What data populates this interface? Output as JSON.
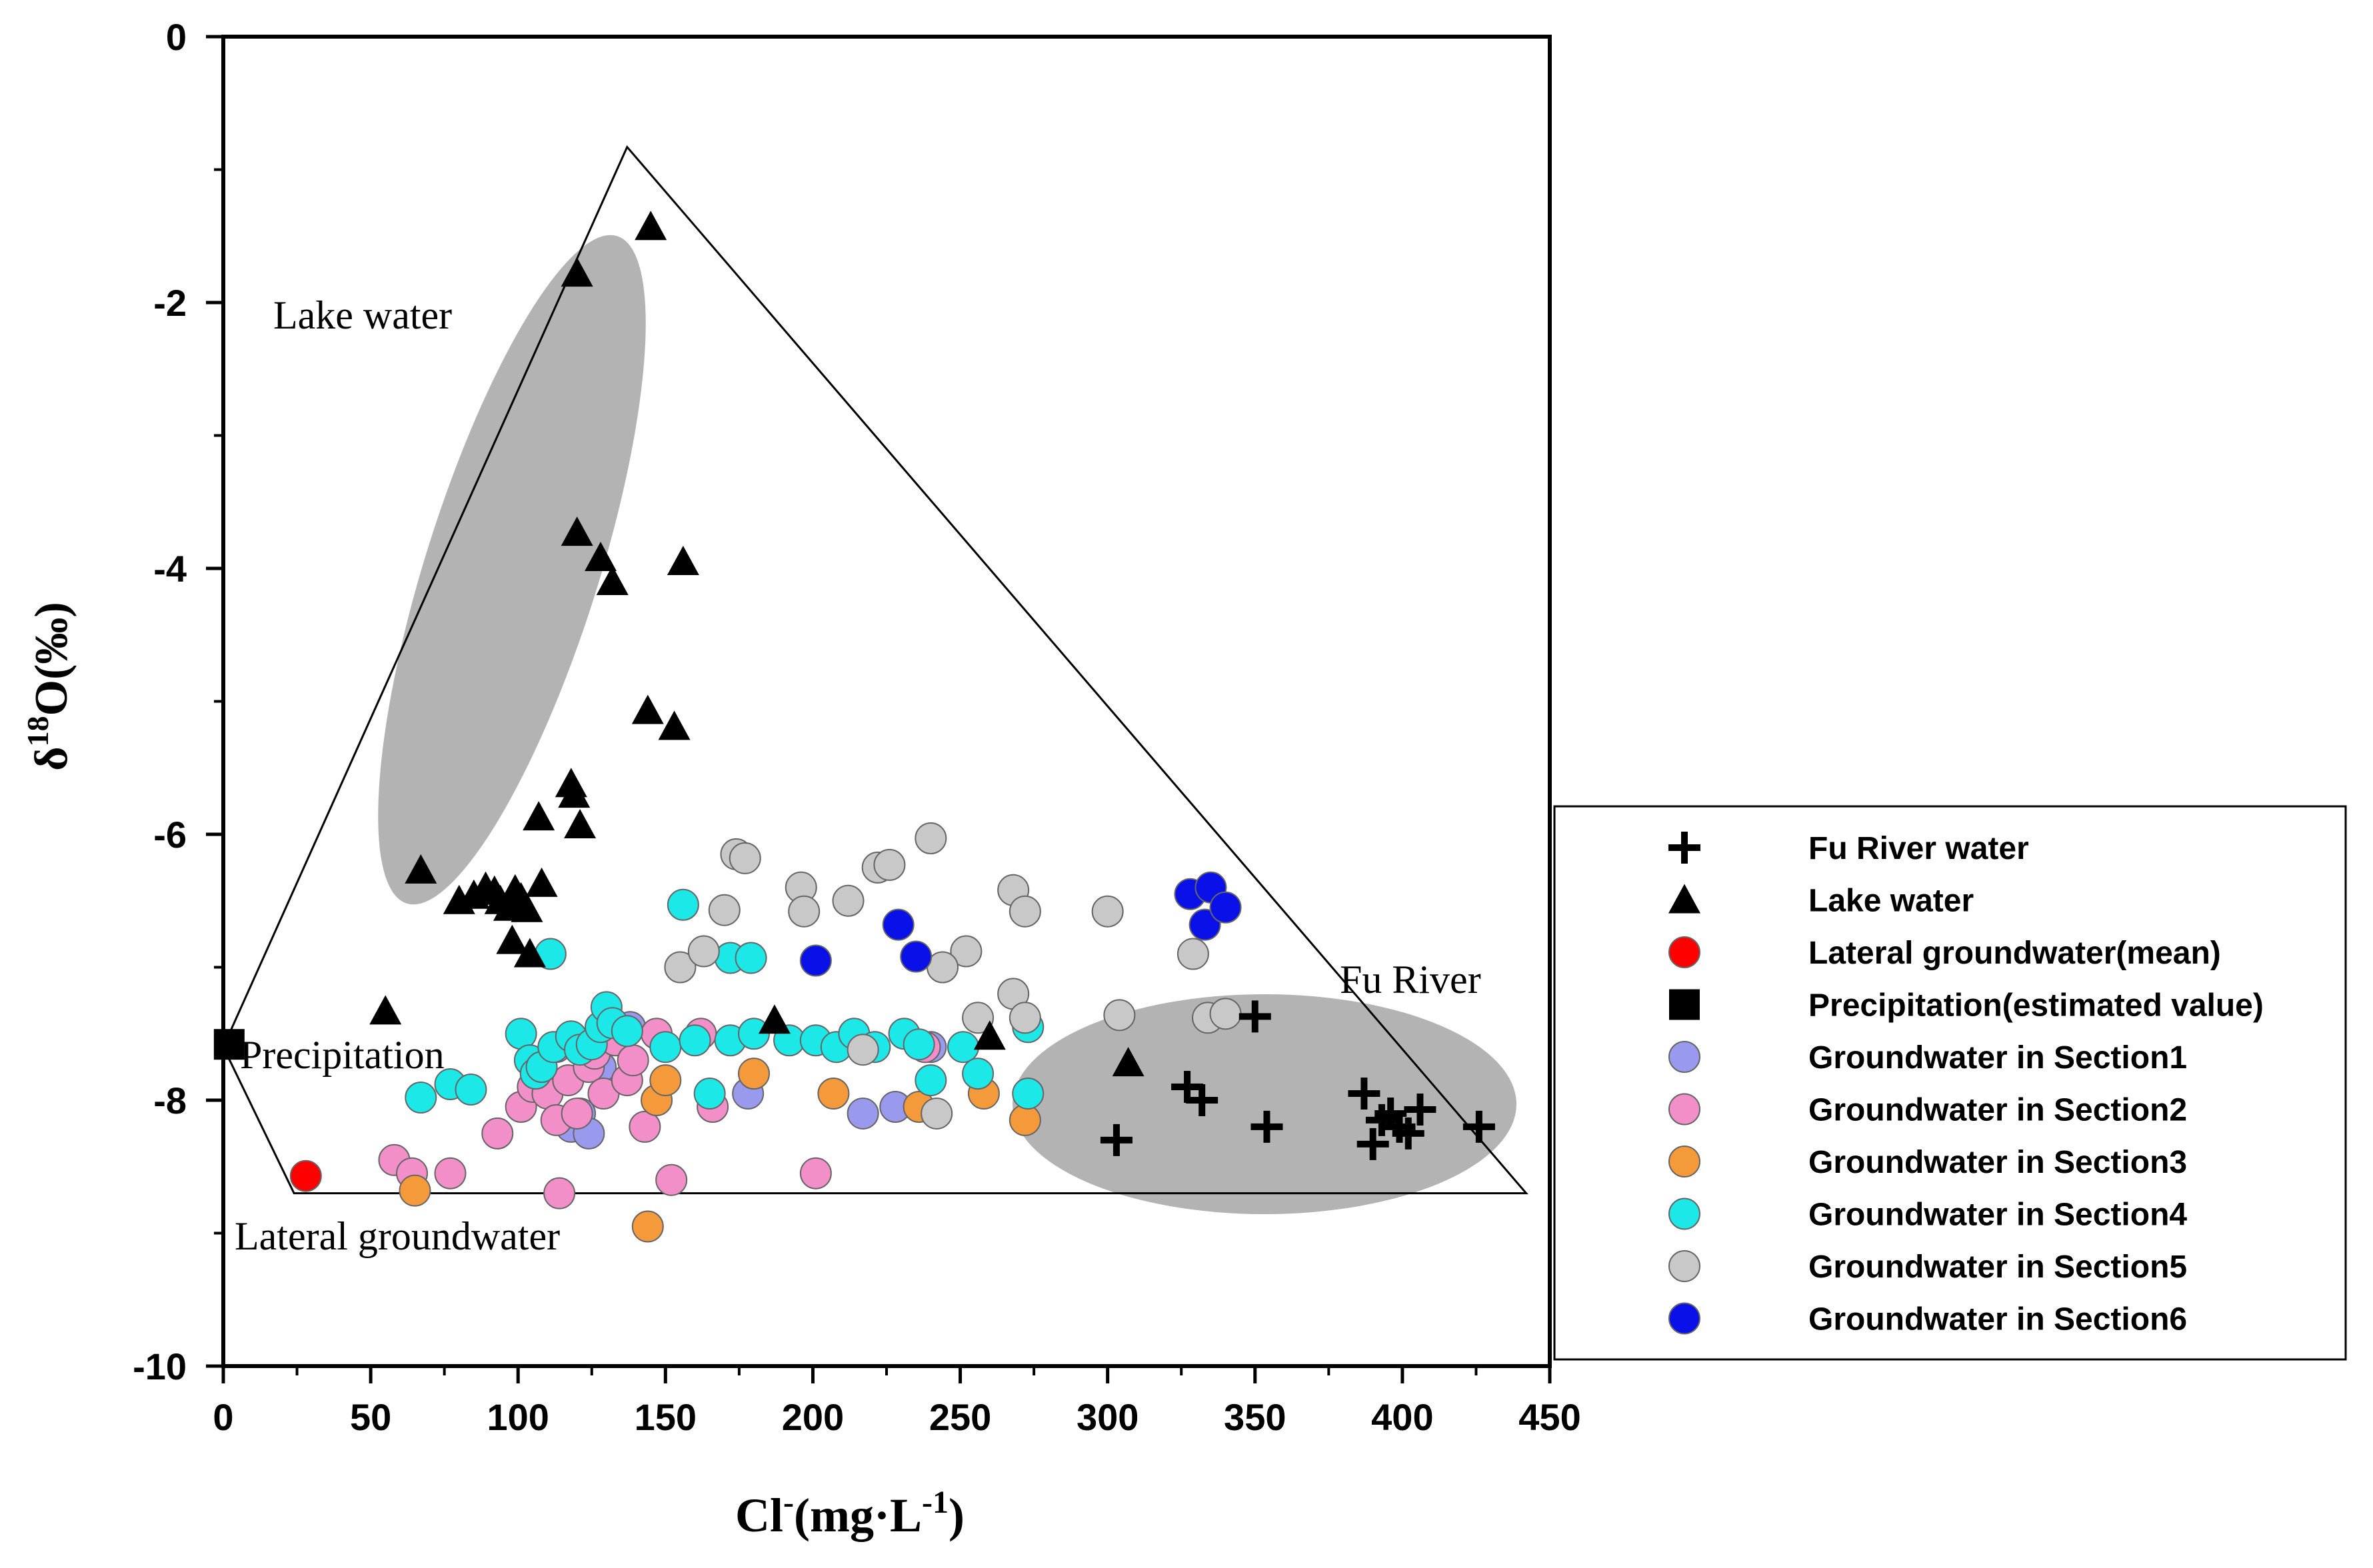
{
  "chart_data": {
    "type": "scatter",
    "title": "",
    "xlabel": "Cl-(mg·L-1)",
    "xlabel_parts": {
      "base": "Cl",
      "sup1": "-",
      "rest": "(mg·L",
      "sup2": "-1",
      "end": ")"
    },
    "ylabel": "δ18O(‰)",
    "ylabel_parts": {
      "base": "δ",
      "sup": "18",
      "rest": "O(‰)"
    },
    "xlim": [
      0,
      450
    ],
    "ylim": [
      -10,
      0
    ],
    "xticks": [
      "0",
      "50",
      "100",
      "150",
      "200",
      "250",
      "300",
      "350",
      "400",
      "450"
    ],
    "yticks": [
      "0",
      "-2",
      "-4",
      "-6",
      "-8",
      "-10"
    ],
    "annotations": [
      "Lake water",
      "Precipitation",
      "Lateral groundwater",
      "Fu River"
    ],
    "mixing_triangle": [
      [
        0,
        -7.6
      ],
      [
        137,
        -0.83
      ],
      [
        442,
        -8.7
      ],
      [
        24,
        -8.7
      ]
    ],
    "legend_position": "right",
    "series": [
      {
        "name": "Fu River water",
        "marker": "cross",
        "color": "#000000",
        "points": [
          [
            303,
            -8.3
          ],
          [
            350,
            -7.37
          ],
          [
            327,
            -7.9
          ],
          [
            332,
            -8.0
          ],
          [
            354,
            -8.2
          ],
          [
            387,
            -7.95
          ],
          [
            390,
            -8.33
          ],
          [
            393,
            -8.15
          ],
          [
            396,
            -8.1
          ],
          [
            399,
            -8.2
          ],
          [
            402,
            -8.25
          ],
          [
            406,
            -8.07
          ],
          [
            426,
            -8.2
          ]
        ]
      },
      {
        "name": "Lake water",
        "marker": "triangle",
        "color": "#000000",
        "points": [
          [
            145,
            -1.43
          ],
          [
            120,
            -1.78
          ],
          [
            120,
            -3.73
          ],
          [
            128,
            -3.92
          ],
          [
            132,
            -4.1
          ],
          [
            156,
            -3.95
          ],
          [
            144,
            -5.07
          ],
          [
            153,
            -5.19
          ],
          [
            118,
            -5.62
          ],
          [
            119,
            -5.7
          ],
          [
            121,
            -5.93
          ],
          [
            107,
            -5.87
          ],
          [
            67,
            -6.27
          ],
          [
            80,
            -6.5
          ],
          [
            85,
            -6.46
          ],
          [
            89,
            -6.4
          ],
          [
            92,
            -6.43
          ],
          [
            94,
            -6.5
          ],
          [
            97,
            -6.55
          ],
          [
            99,
            -6.42
          ],
          [
            101,
            -6.48
          ],
          [
            103,
            -6.56
          ],
          [
            108,
            -6.37
          ],
          [
            98,
            -6.8
          ],
          [
            104,
            -6.9
          ],
          [
            55,
            -7.33
          ],
          [
            187,
            -7.4
          ],
          [
            260,
            -7.52
          ],
          [
            307,
            -7.72
          ]
        ]
      },
      {
        "name": "Lateral groundwater(mean)",
        "marker": "circle",
        "color": "#ff0000",
        "points": [
          [
            28,
            -8.57
          ]
        ]
      },
      {
        "name": "Precipitation(estimated value)",
        "marker": "square",
        "color": "#000000",
        "points": [
          [
            2,
            -7.58
          ]
        ]
      },
      {
        "name": "Groundwater in Section1",
        "marker": "circle",
        "color": "#9999ee",
        "points": [
          [
            113,
            -7.6
          ],
          [
            118,
            -8.2
          ],
          [
            121,
            -8.1
          ],
          [
            124,
            -8.25
          ],
          [
            128,
            -7.75
          ],
          [
            131,
            -7.5
          ],
          [
            138,
            -7.45
          ],
          [
            178,
            -7.95
          ],
          [
            217,
            -8.1
          ],
          [
            228,
            -8.05
          ],
          [
            240,
            -7.6
          ]
        ]
      },
      {
        "name": "Groundwater in Section2",
        "marker": "circle",
        "color": "#f28ec8",
        "points": [
          [
            58,
            -8.45
          ],
          [
            64,
            -8.55
          ],
          [
            77,
            -8.55
          ],
          [
            93,
            -8.25
          ],
          [
            101,
            -8.05
          ],
          [
            105,
            -7.9
          ],
          [
            110,
            -7.95
          ],
          [
            113,
            -8.15
          ],
          [
            114,
            -8.7
          ],
          [
            117,
            -7.85
          ],
          [
            120,
            -8.1
          ],
          [
            124,
            -7.75
          ],
          [
            126,
            -7.65
          ],
          [
            129,
            -7.95
          ],
          [
            133,
            -7.55
          ],
          [
            137,
            -7.85
          ],
          [
            139,
            -7.7
          ],
          [
            143,
            -8.2
          ],
          [
            147,
            -7.5
          ],
          [
            152,
            -8.6
          ],
          [
            162,
            -7.5
          ],
          [
            166,
            -8.05
          ],
          [
            201,
            -8.55
          ],
          [
            238,
            -7.6
          ]
        ]
      },
      {
        "name": "Groundwater in Section3",
        "marker": "circle",
        "color": "#f59a3a",
        "points": [
          [
            65,
            -8.68
          ],
          [
            144,
            -8.95
          ],
          [
            147,
            -8.0
          ],
          [
            150,
            -7.85
          ],
          [
            180,
            -7.8
          ],
          [
            207,
            -7.95
          ],
          [
            236,
            -8.05
          ],
          [
            258,
            -7.95
          ],
          [
            272,
            -8.15
          ]
        ]
      },
      {
        "name": "Groundwater in Section4",
        "marker": "circle",
        "color": "#1ce8e8",
        "points": [
          [
            156,
            -6.53
          ],
          [
            111,
            -6.9
          ],
          [
            172,
            -6.93
          ],
          [
            179,
            -6.93
          ],
          [
            67,
            -7.98
          ],
          [
            77,
            -7.88
          ],
          [
            84,
            -7.92
          ],
          [
            101,
            -7.5
          ],
          [
            104,
            -7.7
          ],
          [
            106,
            -7.8
          ],
          [
            108,
            -7.75
          ],
          [
            112,
            -7.6
          ],
          [
            118,
            -7.52
          ],
          [
            121,
            -7.62
          ],
          [
            125,
            -7.58
          ],
          [
            128,
            -7.45
          ],
          [
            130,
            -7.3
          ],
          [
            132,
            -7.42
          ],
          [
            137,
            -7.48
          ],
          [
            150,
            -7.6
          ],
          [
            160,
            -7.55
          ],
          [
            165,
            -7.95
          ],
          [
            172,
            -7.55
          ],
          [
            180,
            -7.5
          ],
          [
            192,
            -7.55
          ],
          [
            201,
            -7.55
          ],
          [
            208,
            -7.6
          ],
          [
            214,
            -7.5
          ],
          [
            221,
            -7.6
          ],
          [
            231,
            -7.5
          ],
          [
            236,
            -7.58
          ],
          [
            240,
            -7.85
          ],
          [
            251,
            -7.6
          ],
          [
            256,
            -7.8
          ],
          [
            273,
            -7.45
          ],
          [
            273,
            -7.95
          ]
        ]
      },
      {
        "name": "Groundwater in Section5",
        "marker": "circle",
        "color": "#c8c8c8",
        "points": [
          [
            174,
            -6.15
          ],
          [
            177,
            -6.18
          ],
          [
            196,
            -6.4
          ],
          [
            197,
            -6.58
          ],
          [
            212,
            -6.5
          ],
          [
            222,
            -6.25
          ],
          [
            226,
            -6.23
          ],
          [
            240,
            -6.03
          ],
          [
            252,
            -6.88
          ],
          [
            244,
            -7.0
          ],
          [
            155,
            -7.0
          ],
          [
            163,
            -6.88
          ],
          [
            170,
            -6.57
          ],
          [
            268,
            -6.42
          ],
          [
            272,
            -6.58
          ],
          [
            268,
            -7.2
          ],
          [
            256,
            -7.38
          ],
          [
            272,
            -7.38
          ],
          [
            300,
            -6.58
          ],
          [
            304,
            -7.36
          ],
          [
            329,
            -6.9
          ],
          [
            334,
            -7.38
          ],
          [
            340,
            -7.35
          ],
          [
            217,
            -7.62
          ],
          [
            242,
            -8.1
          ]
        ]
      },
      {
        "name": "Groundwater in Section6",
        "marker": "circle",
        "color": "#0a10e8",
        "points": [
          [
            201,
            -6.95
          ],
          [
            229,
            -6.68
          ],
          [
            235,
            -6.92
          ],
          [
            328,
            -6.45
          ],
          [
            335,
            -6.4
          ],
          [
            333,
            -6.68
          ],
          [
            340,
            -6.55
          ]
        ]
      }
    ]
  }
}
